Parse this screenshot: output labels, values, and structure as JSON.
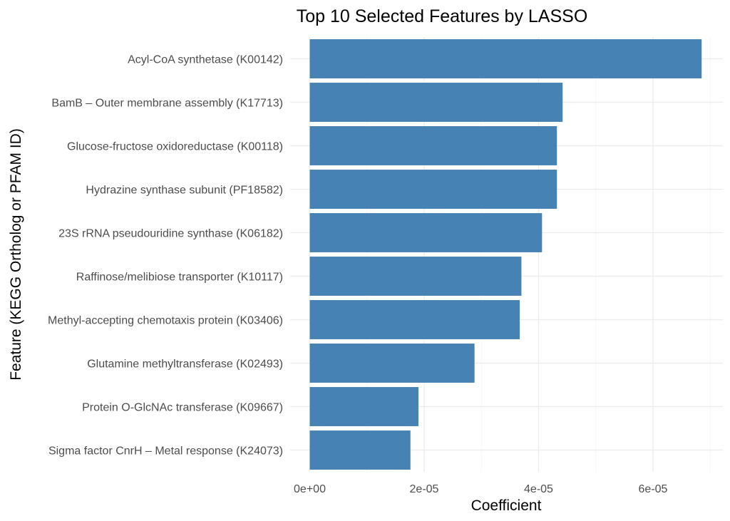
{
  "chart_data": {
    "type": "bar",
    "orientation": "horizontal",
    "title": "Top 10 Selected Features by LASSO",
    "xlabel": "Coefficient",
    "ylabel": "Feature (KEGG Ortholog or PFAM ID)",
    "xlim": [
      0,
      7e-05
    ],
    "x_ticks": [
      0,
      2e-05,
      4e-05,
      6e-05
    ],
    "x_tick_labels": [
      "0e+00",
      "2e-05",
      "4e-05",
      "6e-05"
    ],
    "grid": true,
    "bar_color": "#4682b4",
    "categories": [
      "Acyl-CoA synthetase (K00142)",
      "BamB – Outer membrane assembly (K17713)",
      "Glucose-fructose oxidoreductase (K00118)",
      "Hydrazine synthase subunit (PF18582)",
      "23S rRNA pseudouridine synthase (K06182)",
      "Raffinose/melibiose transporter (K10117)",
      "Methyl-accepting chemotaxis protein (K03406)",
      "Glutamine methyltransferase (K02493)",
      "Protein O-GlcNAc transferase (K09667)",
      "Sigma factor CnrH – Metal response (K24073)"
    ],
    "values": [
      6.85e-05,
      4.42e-05,
      4.32e-05,
      4.32e-05,
      4.06e-05,
      3.7e-05,
      3.67e-05,
      2.88e-05,
      1.9e-05,
      1.76e-05
    ]
  }
}
